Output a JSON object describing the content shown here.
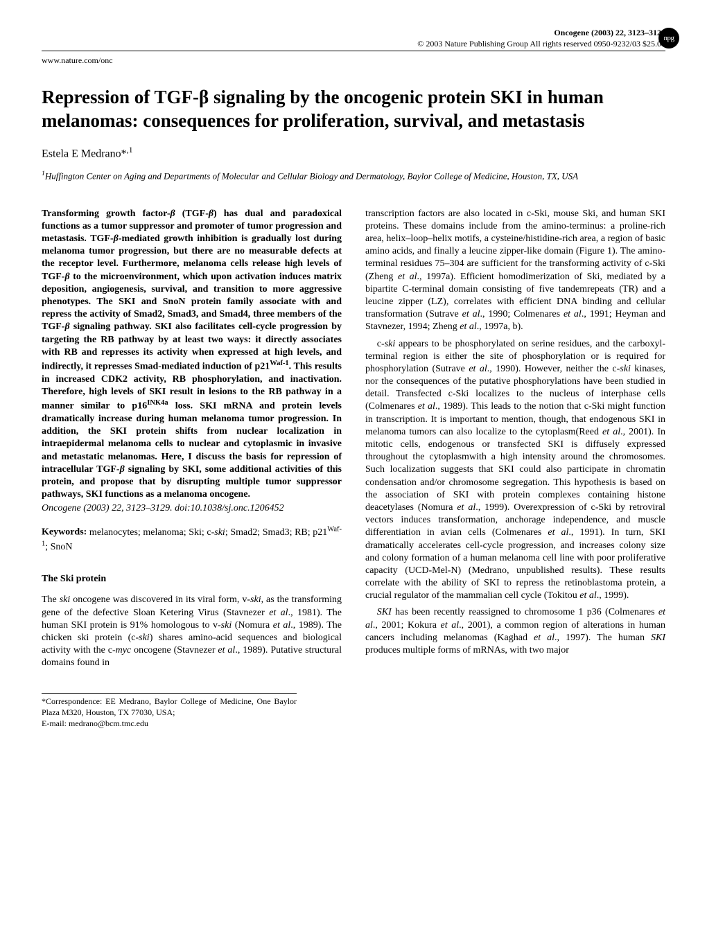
{
  "header": {
    "journal_issue": "Oncogene (2003) 22, 3123–3129",
    "copyright": "© 2003 Nature Publishing Group  All rights reserved 0950-9232/03 $25.00",
    "url": "www.nature.com/onc",
    "npg": "npg"
  },
  "title": "Repression of TGF-β signaling by the oncogenic protein SKI in human melanomas: consequences for proliferation, survival, and metastasis",
  "author": {
    "name": "Estela E Medrano*",
    "sup": ",1"
  },
  "affiliation": {
    "sup": "1",
    "text": "Huffington Center on Aging and Departments of Molecular and Cellular Biology and Dermatology, Baylor College of Medicine, Houston, TX, USA"
  },
  "abstract_html": "Transforming growth factor-<span class=\"it\">β</span> (TGF-<span class=\"it\">β</span>) has dual and paradoxical functions as a tumor suppressor and promoter of tumor progression and metastasis. TGF-<span class=\"it\">β</span>-mediated growth inhibition is gradually lost during melanoma tumor progression, but there are no measurable defects at the receptor level. Furthermore, melanoma cells release high levels of TGF-<span class=\"it\">β</span> to the microenvironment, which upon activation induces matrix deposition, angiogenesis, survival, and transition to more aggressive phenotypes. The SKI and SnoN protein family associate with and repress the activity of Smad2, Smad3, and Smad4, three members of the TGF-<span class=\"it\">β</span> signaling pathway. SKI also facilitates cell-cycle progression by targeting the RB pathway by at least two ways: it directly associates with RB and represses its activity when expressed at high levels, and indirectly, it represses Smad-mediated induction of p21<sup>Waf-1</sup>. This results in increased CDK2 activity, RB phosphorylation, and inactivation. Therefore, high levels of SKI result in lesions to the RB pathway in a manner similar to p16<sup>INK4a</sup> loss. SKI mRNA and protein levels dramatically increase during human melanoma tumor progression. In addition, the SKI protein shifts from nuclear localization in intraepidermal melanoma cells to nuclear and cytoplasmic in invasive and metastatic melanomas. Here, I discuss the basis for repression of intracellular TGF-<span class=\"it\">β</span> signaling by SKI, some additional activities of this protein, and propose that by disrupting multiple tumor suppressor pathways, SKI functions as a melanoma oncogene.",
  "doi_line": "Oncogene (2003) 22, 3123–3129. doi:10.1038/sj.onc.1206452",
  "keywords": {
    "label": "Keywords:",
    "text_html": " melanocytes; melanoma; Ski; c-<span class=\"it\">ski</span>; Smad2; Smad3; RB; p21<sup>Waf-1</sup>; SnoN"
  },
  "section_heading": "The Ski protein",
  "left_body_html": "The <span class=\"it\">ski</span> oncogene was discovered in its viral form, v-<span class=\"it\">ski</span>, as the transforming gene of the defective Sloan Ketering Virus (Stavnezer <span class=\"it\">et al</span>., 1981). The human SKI protein is 91% homologous to v-<span class=\"it\">ski</span> (Nomura <span class=\"it\">et al</span>., 1989). The chicken ski protein (c-<span class=\"it\">ski</span>) shares amino-acid sequences and biological activity with the c-<span class=\"it\">myc</span> oncogene (Stavnezer <span class=\"it\">et al</span>., 1989). Putative structural domains found in",
  "correspondence": {
    "line1": "*Correspondence: EE Medrano, Baylor College of Medicine, One Baylor Plaza M320, Houston, TX 77030, USA;",
    "line2": "E-mail: medrano@bcm.tmc.edu"
  },
  "right_p1_html": "transcription factors are also located in c-Ski, mouse Ski, and human SKI proteins. These domains include from the amino-terminus: a proline-rich area, helix–loop–helix motifs, a cysteine/histidine-rich area, a region of basic amino acids, and finally a leucine zipper-like domain (Figure 1). The amino-terminal residues 75–304 are sufficient for the transforming activity of c-Ski (Zheng <span class=\"it\">et al</span>., 1997a). Efficient homodimerization of Ski, mediated by a bipartite C-terminal domain consisting of five tandemrepeats (TR) and a leucine zipper (LZ), correlates with efficient DNA binding and cellular transformation (Sutrave <span class=\"it\">et al</span>., 1990; Colmenares <span class=\"it\">et al</span>., 1991; Heyman and Stavnezer, 1994; Zheng <span class=\"it\">et al</span>., 1997a, b).",
  "right_p2_html": "c-<span class=\"it\">ski</span> appears to be phosphorylated on serine residues, and the carboxyl-terminal region is either the site of phosphorylation or is required for phosphorylation (Sutrave <span class=\"it\">et al</span>., 1990). However, neither the c-<span class=\"it\">ski</span> kinases, nor the consequences of the putative phosphorylations have been studied in detail. Transfected c-Ski localizes to the nucleus of interphase cells (Colmenares <span class=\"it\">et al</span>., 1989). This leads to the notion that c-Ski might function in transcription. It is important to mention, though, that endogenous SKI in melanoma tumors can also localize to the cytoplasm(Reed <span class=\"it\">et al</span>., 2001). In mitotic cells, endogenous or transfected SKI is diffusely expressed throughout the cytoplasmwith a high intensity around the chromosomes. Such localization suggests that SKI could also participate in chromatin condensation and/or chromosome segregation. This hypothesis is based on the association of SKI with protein complexes containing histone deacetylases (Nomura <span class=\"it\">et al</span>., 1999). Overexpression of c-Ski by retroviral vectors induces transformation, anchorage independence, and muscle differentiation in avian cells (Colmenares <span class=\"it\">et al</span>., 1991). In turn, SKI dramatically accelerates cell-cycle progression, and increases colony size and colony formation of a human melanoma cell line with poor proliferative capacity (UCD-Mel-N) (Medrano, unpublished results). These results correlate with the ability of SKI to repress the retinoblastoma protein, a crucial regulator of the mammalian cell cycle (Tokitou <span class=\"it\">et al</span>., 1999).",
  "right_p3_html": "<span class=\"it\">SKI</span> has been recently reassigned to chromosome 1 p36 (Colmenares <span class=\"it\">et al</span>., 2001; Kokura <span class=\"it\">et al</span>., 2001), a common region of alterations in human cancers including melanomas (Kaghad <span class=\"it\">et al</span>., 1997). The human <span class=\"it\">SKI</span> produces multiple forms of mRNAs, with two major"
}
